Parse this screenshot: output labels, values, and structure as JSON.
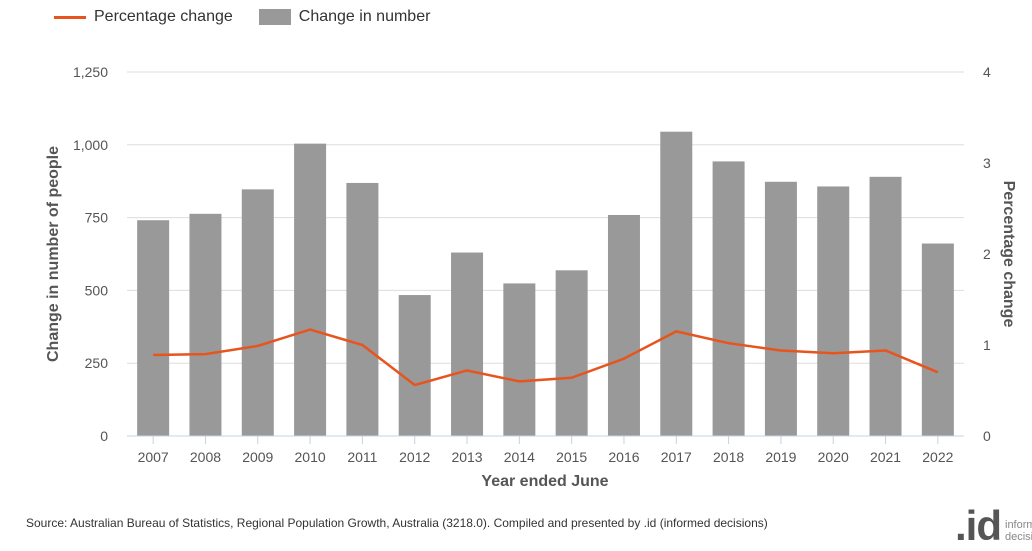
{
  "legend": {
    "line_label": "Percentage change",
    "bar_label": "Change in number"
  },
  "colors": {
    "bar": "#999999",
    "line": "#e8541e",
    "grid": "#dddddd",
    "axis": "#c8d0e0"
  },
  "chart_data": {
    "type": "bar",
    "categories": [
      "2007",
      "2008",
      "2009",
      "2010",
      "2011",
      "2012",
      "2013",
      "2014",
      "2015",
      "2016",
      "2017",
      "2018",
      "2019",
      "2020",
      "2021",
      "2022"
    ],
    "series": [
      {
        "name": "Change in number",
        "type": "bar",
        "axis": "left",
        "values": [
          741,
          763,
          847,
          1004,
          869,
          484,
          630,
          524,
          569,
          759,
          1045,
          943,
          873,
          857,
          890,
          661
        ]
      },
      {
        "name": "Percentage change",
        "type": "line",
        "axis": "right",
        "values": [
          0.89,
          0.9,
          0.99,
          1.17,
          1.0,
          0.56,
          0.72,
          0.6,
          0.64,
          0.85,
          1.15,
          1.02,
          0.94,
          0.91,
          0.94,
          0.7
        ]
      }
    ],
    "xlabel": "Year ended June",
    "ylabel": "Change in number of people",
    "y2label": "Percentage change",
    "ylim": [
      0,
      1250
    ],
    "y2lim": [
      0,
      4
    ],
    "yticks": [
      0,
      250,
      500,
      750,
      1000,
      1250
    ],
    "ytick_labels": [
      "0",
      "250",
      "500",
      "750",
      "1,000",
      "1,250"
    ],
    "y2ticks": [
      0,
      1,
      2,
      3,
      4
    ],
    "y2tick_labels": [
      "0",
      "1",
      "2",
      "3",
      "4"
    ],
    "grid": true,
    "legend_position": "top-left"
  },
  "footer": {
    "source": "Source: Australian Bureau of Statistics, Regional Population Growth, Australia (3218.0). Compiled and presented by .id (informed decisions)",
    "logo_mark": ".id",
    "logo_text_1": "inform",
    "logo_text_2": "decisi"
  }
}
